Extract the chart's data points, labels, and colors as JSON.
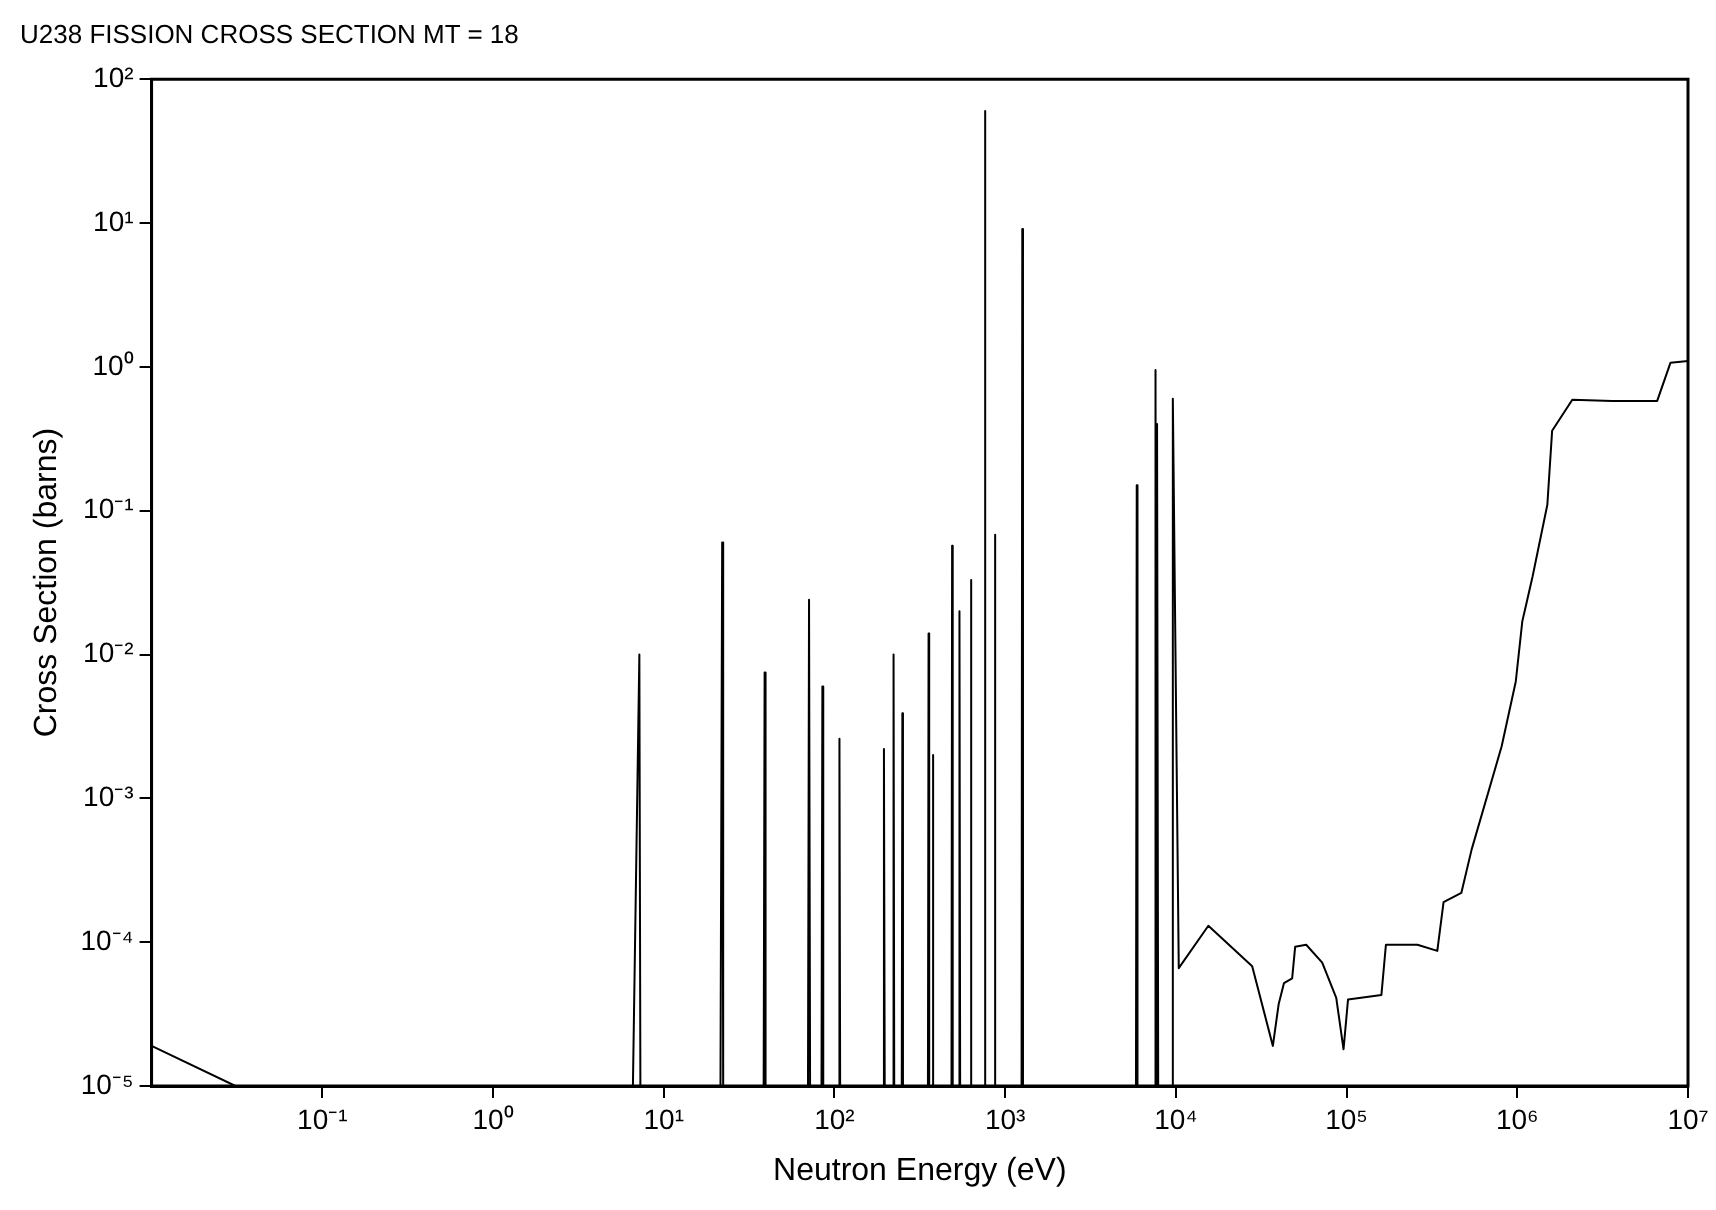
{
  "chart_data": {
    "type": "line",
    "title": "U238 FISSION CROSS SECTION MT = 18",
    "xlabel": "Neutron Energy (eV)",
    "ylabel": "Cross Section (barns)",
    "log": "xy",
    "grid": false,
    "legend": false,
    "marker": "none",
    "line_style": "solid",
    "xlim": [
      0.01,
      10000000
    ],
    "ylim": [
      1e-05,
      100
    ],
    "xticks": [
      {
        "value": 0.1,
        "label": "10⁻¹"
      },
      {
        "value": 1,
        "label": "10⁰"
      },
      {
        "value": 10,
        "label": "10¹"
      },
      {
        "value": 100,
        "label": "10²"
      },
      {
        "value": 1000,
        "label": "10³"
      },
      {
        "value": 10000,
        "label": "10⁴"
      },
      {
        "value": 100000,
        "label": "10⁵"
      },
      {
        "value": 1000000,
        "label": "10⁶"
      },
      {
        "value": 10000000,
        "label": "10⁷"
      }
    ],
    "yticks": [
      {
        "value": 1e-05,
        "label": "10⁻⁵"
      },
      {
        "value": 0.0001,
        "label": "10⁻⁴"
      },
      {
        "value": 0.001,
        "label": "10⁻³"
      },
      {
        "value": 0.01,
        "label": "10⁻²"
      },
      {
        "value": 0.1,
        "label": "10⁻¹"
      },
      {
        "value": 1,
        "label": "10⁰"
      },
      {
        "value": 10,
        "label": "10¹"
      },
      {
        "value": 100,
        "label": "10²"
      }
    ],
    "series": [
      {
        "color": "#000000",
        "x": [
          0.01,
          0.031,
          6.6,
          7.2,
          7.3,
          21.5,
          22,
          22.3,
          38.5,
          39,
          39.5,
          70,
          71,
          72,
          84,
          85,
          86,
          106,
          107,
          108,
          193,
          195,
          197,
          220,
          222,
          224,
          248,
          250,
          252,
          353,
          356,
          359,
          374,
          377,
          380,
          485,
          489,
          493,
          535,
          540,
          545,
          625,
          630,
          635,
          752,
          760,
          768,
          862,
          870,
          878,
          1248,
          1260,
          1272,
          5840,
          5900,
          5960,
          7520,
          7600,
          7680,
          7720,
          7800,
          7880,
          9500,
          9600,
          10400,
          15500,
          28000,
          37000,
          40000,
          43000,
          48000,
          50000,
          58000,
          72000,
          87000,
          96000,
          102000,
          160000,
          170000,
          260000,
          340000,
          370000,
          470000,
          540000,
          810000,
          980000,
          1070000,
          1230000,
          1500000,
          1600000,
          2100000,
          3600000,
          6600000,
          7900000,
          10000000
        ],
        "values": [
          1.9e-05,
          1e-05,
          1e-05,
          0.01,
          1e-05,
          1e-05,
          0.06,
          1e-05,
          1e-05,
          0.0075,
          1e-05,
          1e-05,
          0.024,
          1e-05,
          1e-05,
          0.006,
          1e-05,
          1e-05,
          0.0026,
          1e-05,
          1e-05,
          0.0022,
          1e-05,
          1e-05,
          0.01,
          1e-05,
          1e-05,
          0.0039,
          1e-05,
          1e-05,
          0.014,
          1e-05,
          1e-05,
          0.002,
          1e-05,
          1e-05,
          0.057,
          1e-05,
          1e-05,
          0.02,
          1e-05,
          1e-05,
          0.033,
          1e-05,
          1e-05,
          60,
          1e-05,
          1e-05,
          0.068,
          1e-05,
          1e-05,
          9.1,
          1e-05,
          1e-05,
          0.15,
          1e-05,
          1e-05,
          0.95,
          1e-05,
          1e-05,
          0.4,
          1e-05,
          1e-05,
          0.6,
          6.6e-05,
          0.00013,
          6.8e-05,
          1.9e-05,
          3.7e-05,
          5.2e-05,
          5.6e-05,
          9.3e-05,
          9.6e-05,
          7.2e-05,
          4.1e-05,
          1.8e-05,
          4e-05,
          4.3e-05,
          9.6e-05,
          9.6e-05,
          8.7e-05,
          0.00019,
          0.00022,
          0.00044,
          0.0023,
          0.0065,
          0.017,
          0.035,
          0.11,
          0.36,
          0.59,
          0.58,
          0.58,
          1.07,
          1.1
        ]
      }
    ]
  }
}
